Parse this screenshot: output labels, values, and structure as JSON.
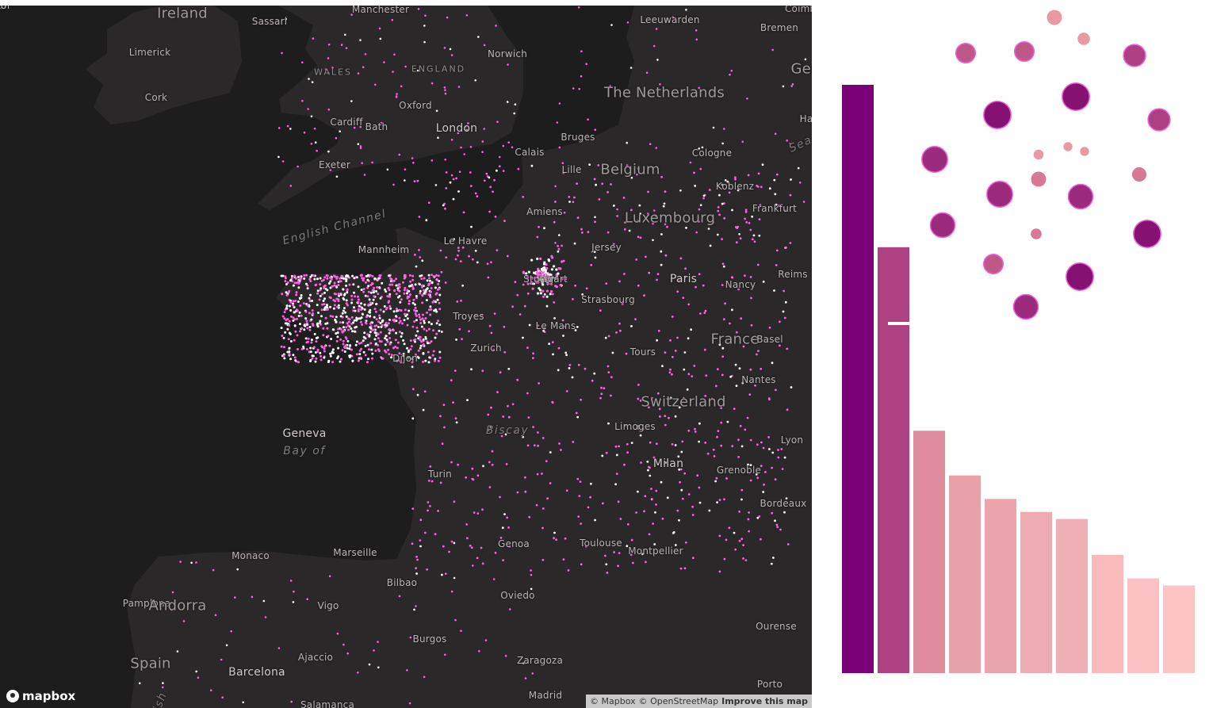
{
  "map": {
    "logo_text": "mapbox",
    "attribution": [
      "© Mapbox",
      "© OpenStreetMap",
      "Improve this map"
    ],
    "labels": [
      {
        "text": "Ireland",
        "kind": "country"
      },
      {
        "text": "Manchester",
        "kind": "city"
      },
      {
        "text": "Leeuwarden",
        "kind": "city"
      },
      {
        "text": "Bremen",
        "kind": "city"
      },
      {
        "text": "Limerick",
        "kind": "city"
      },
      {
        "text": "Norwich",
        "kind": "city"
      },
      {
        "text": "WALES",
        "kind": "region"
      },
      {
        "text": "ENGLAND",
        "kind": "region"
      },
      {
        "text": "The Netherlands",
        "kind": "country"
      },
      {
        "text": "Cork",
        "kind": "city"
      },
      {
        "text": "Oxford",
        "kind": "city"
      },
      {
        "text": "Cardiff",
        "kind": "city"
      },
      {
        "text": "Bath",
        "kind": "city"
      },
      {
        "text": "London",
        "kind": "big"
      },
      {
        "text": "Bruges",
        "kind": "city"
      },
      {
        "text": "Calais",
        "kind": "city"
      },
      {
        "text": "Cologne",
        "kind": "city"
      },
      {
        "text": "Exeter",
        "kind": "city"
      },
      {
        "text": "Lille",
        "kind": "city"
      },
      {
        "text": "Belgium",
        "kind": "country"
      },
      {
        "text": "Koblenz",
        "kind": "city"
      },
      {
        "text": "English Channel",
        "kind": "water"
      },
      {
        "text": "Amiens",
        "kind": "city"
      },
      {
        "text": "Luxembourg",
        "kind": "country"
      },
      {
        "text": "Frankfurt",
        "kind": "city"
      },
      {
        "text": "Le Havre",
        "kind": "city"
      },
      {
        "text": "Mannheim",
        "kind": "city"
      },
      {
        "text": "Jersey",
        "kind": "city"
      },
      {
        "text": "Reims",
        "kind": "city"
      },
      {
        "text": "Stuttgart",
        "kind": "city"
      },
      {
        "text": "Paris",
        "kind": "big"
      },
      {
        "text": "Nancy",
        "kind": "city"
      },
      {
        "text": "Strasbourg",
        "kind": "city"
      },
      {
        "text": "Troyes",
        "kind": "city"
      },
      {
        "text": "Le Mans",
        "kind": "city"
      },
      {
        "text": "France",
        "kind": "country"
      },
      {
        "text": "Basel",
        "kind": "city"
      },
      {
        "text": "Zurich",
        "kind": "city"
      },
      {
        "text": "Tours",
        "kind": "city"
      },
      {
        "text": "Dijon",
        "kind": "city"
      },
      {
        "text": "Nantes",
        "kind": "city"
      },
      {
        "text": "Switzerland",
        "kind": "country"
      },
      {
        "text": "Geneva",
        "kind": "big"
      },
      {
        "text": "Bay of",
        "kind": "water"
      },
      {
        "text": "Biscay",
        "kind": "water"
      },
      {
        "text": "Limoges",
        "kind": "city"
      },
      {
        "text": "Lyon",
        "kind": "city"
      },
      {
        "text": "Milan",
        "kind": "big"
      },
      {
        "text": "Grenoble",
        "kind": "city"
      },
      {
        "text": "Turin",
        "kind": "city"
      },
      {
        "text": "Bordeaux",
        "kind": "city"
      },
      {
        "text": "Genoa",
        "kind": "city"
      },
      {
        "text": "Toulouse",
        "kind": "city"
      },
      {
        "text": "Montpellier",
        "kind": "city"
      },
      {
        "text": "Marseille",
        "kind": "city"
      },
      {
        "text": "Monaco",
        "kind": "city"
      },
      {
        "text": "Bilbao",
        "kind": "city"
      },
      {
        "text": "Oviedo",
        "kind": "city"
      },
      {
        "text": "Pamplona",
        "kind": "city"
      },
      {
        "text": "Andorra",
        "kind": "country"
      },
      {
        "text": "Vigo",
        "kind": "city"
      },
      {
        "text": "Ourense",
        "kind": "city"
      },
      {
        "text": "Burgos",
        "kind": "city"
      },
      {
        "text": "Ajaccio",
        "kind": "city"
      },
      {
        "text": "Zaragoza",
        "kind": "city"
      },
      {
        "text": "Spain",
        "kind": "country"
      },
      {
        "text": "Barcelona",
        "kind": "big"
      },
      {
        "text": "Porto",
        "kind": "city"
      },
      {
        "text": "Salamanca",
        "kind": "city"
      },
      {
        "text": "Sassari",
        "kind": "city"
      },
      {
        "text": "Madrid",
        "kind": "city"
      },
      {
        "text": "Irish",
        "kind": "water"
      },
      {
        "text": "Sea",
        "kind": "water"
      },
      {
        "text": "Coimbra",
        "kind": "city"
      },
      {
        "text": "Ger",
        "kind": "country"
      },
      {
        "text": "Ha",
        "kind": "city"
      },
      {
        "text": "Han",
        "kind": "city"
      },
      {
        "text": "Do",
        "kind": "city"
      }
    ],
    "colors": {
      "background": "#1e1d1e",
      "land": "#2a2829",
      "point": "#ff5fe0",
      "point_hot": "#ffffff"
    }
  },
  "chart_data": [
    {
      "type": "bar",
      "values": [
        100,
        72.4,
        41.2,
        33.6,
        29.6,
        27.4,
        26.2,
        20.1,
        16.1,
        14.9
      ],
      "colors": [
        "#7a0177",
        "#ae4281",
        "#dd8a9c",
        "#e8a1a9",
        "#eba3ac",
        "#eeabb2",
        "#f0afb5",
        "#f8babb",
        "#fbc0c1",
        "#fcc5c4"
      ],
      "ylim": [
        0,
        100
      ]
    },
    {
      "type": "bubble",
      "values": [
        2.5,
        4.2,
        4.2,
        1.7,
        5.4,
        8.2,
        8.2,
        5.4,
        7.3,
        0.9,
        0.9,
        1.1,
        7.3,
        6.7,
        2.3,
        6.7,
        8.2,
        4.2,
        1.3,
        6.7,
        6.7,
        8.2,
        2.5
      ],
      "colors": [
        "#e899a4",
        "#be5987",
        "#be5987",
        "#e899a4",
        "#ac4082",
        "#851273",
        "#851273",
        "#ac4082",
        "#9b2b7d",
        "#e899a4",
        "#e899a4",
        "#e899a4",
        "#9b2b7d",
        "#9b2b7d",
        "#d97894",
        "#9b2b7d",
        "#851273",
        "#be5987",
        "#d97894",
        "#9b2b7d",
        "#9b2b7d",
        "#851273",
        "#d97894"
      ],
      "stroke": "#f060d8"
    }
  ]
}
